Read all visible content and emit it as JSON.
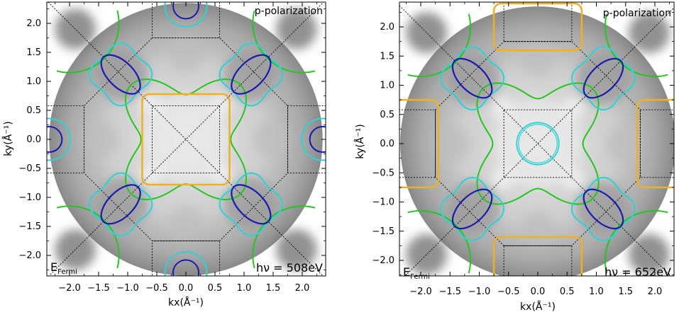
{
  "colors": {
    "fermi_surface_1": "#1a1ab0",
    "fermi_surface_2": "#2ad4d4",
    "fermi_surface_3": "#22c81e",
    "fermi_surface_4": "#f0b020",
    "zone_boundary": "#000000"
  },
  "chart_data": [
    {
      "type": "heatmap",
      "xlabel": "kx(Å⁻¹)",
      "ylabel": "ky(Å⁻¹)",
      "xlim": [
        -2.4,
        2.4
      ],
      "ylim": [
        -2.35,
        2.35
      ],
      "xticks": [
        -2.0,
        -1.5,
        -1.0,
        -0.5,
        0.0,
        0.5,
        1.0,
        1.5,
        2.0
      ],
      "yticks": [
        -2.0,
        -1.5,
        -1.0,
        -0.5,
        0.0,
        0.5,
        1.0,
        1.5,
        2.0
      ],
      "xtick_labels": [
        "−2.0",
        "−1.5",
        "−1.0",
        "−0.5",
        "0.0",
        "0.5",
        "1.0",
        "1.5",
        "2.0"
      ],
      "ytick_labels": [
        "−2.0",
        "−1.5",
        "−1.0",
        "−0.5",
        "0.0",
        "0.5",
        "1.0",
        "1.5",
        "2.0"
      ],
      "annotations": {
        "polarization": "p-polarization",
        "energy_label": "E",
        "energy_subscript": "Fermi",
        "photon_energy": "hν = 508eV"
      },
      "grid": false,
      "legend": "none"
    },
    {
      "type": "heatmap",
      "xlabel": "kx(Å⁻¹)",
      "ylabel": "ky(Å⁻¹)",
      "xlim": [
        -2.35,
        2.35
      ],
      "ylim": [
        -2.35,
        2.35
      ],
      "xticks": [
        -2.0,
        -1.5,
        -1.0,
        -0.5,
        0.0,
        0.5,
        1.0,
        1.5,
        2.0
      ],
      "yticks": [
        -2.0,
        -1.5,
        -1.0,
        -0.5,
        0.0,
        0.5,
        1.0,
        1.5,
        2.0
      ],
      "xtick_labels": [
        "−2.0",
        "−1.5",
        "−1.0",
        "−0.5",
        "0.0",
        "0.5",
        "1.0",
        "1.5",
        "2.0"
      ],
      "ytick_labels": [
        "−2.0",
        "−1.5",
        "−1.0",
        "−0.5",
        "0.0",
        "0.5",
        "1.0",
        "1.5",
        "2.0"
      ],
      "annotations": {
        "polarization": "p-polarization",
        "energy_label": "E",
        "energy_subscript": "Fermi",
        "photon_energy": "hν = 652eV"
      },
      "grid": false,
      "legend": "none"
    }
  ]
}
